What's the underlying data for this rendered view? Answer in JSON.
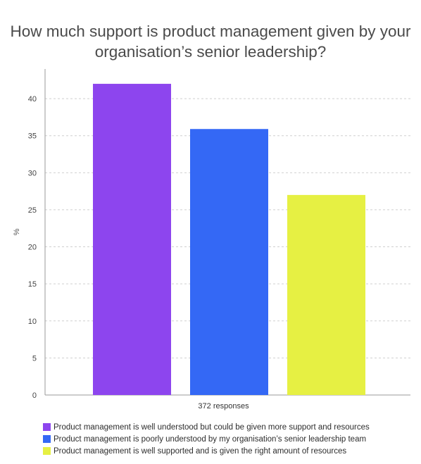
{
  "chart_data": {
    "type": "bar",
    "title": "How much support is product management given by your organisation’s senior leadership?",
    "ylabel": "%",
    "xlabel": "",
    "categories": [
      "372 responses"
    ],
    "ylim": [
      0,
      44
    ],
    "yticks": [
      0,
      5,
      10,
      15,
      20,
      25,
      30,
      35,
      40
    ],
    "grid": true,
    "legend_position": "bottom",
    "series": [
      {
        "name": "Product management is well understood but could be given more support and resources",
        "values": [
          42
        ],
        "color": "#8d45ee"
      },
      {
        "name": "Product management is poorly understood by my organisation’s senior leadership team",
        "values": [
          35.9
        ],
        "color": "#3468f5"
      },
      {
        "name": "Product management is well supported and is given the right amount of resources",
        "values": [
          27
        ],
        "color": "#e6f043"
      }
    ]
  }
}
